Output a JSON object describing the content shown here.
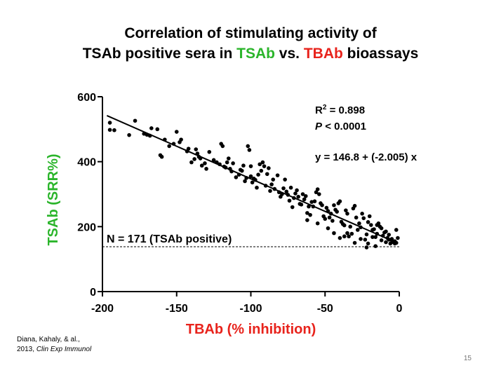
{
  "slide": {
    "title_line1": "Correlation of stimulating activity of",
    "title_line2_pre": "TSAb positive sera in ",
    "title_line2_tsab": "TSAb",
    "title_line2_mid": " vs. ",
    "title_line2_tbab": "TBAb",
    "title_line2_post": " bioassays",
    "citation_line1": "Diana, Kahaly, & al.,",
    "citation_line2_year": "2013, ",
    "citation_line2_journal": "Clin Exp Immunol",
    "page_number": "15"
  },
  "colors": {
    "green": "#2bb52b",
    "red": "#e8231c",
    "axis": "#000000"
  },
  "chart_data": {
    "type": "scatter",
    "title": "",
    "xlabel": "TBAb (% inhibition)",
    "ylabel": "TSAb (SRR%)",
    "xlim": [
      -200,
      0
    ],
    "ylim": [
      0,
      600
    ],
    "x_ticks": [
      -200,
      -150,
      -100,
      -50,
      0
    ],
    "y_ticks": [
      0,
      200,
      400,
      600
    ],
    "grid": false,
    "regression": {
      "intercept": 146.8,
      "slope": -2.005,
      "label": "y = 146.8 + (-2.005) x"
    },
    "r_squared_label": "= 0.898",
    "p_label": "< 0.0001",
    "threshold": {
      "y": 138,
      "label": "N = 171 (TSAb positive)"
    },
    "points": [
      [
        -195,
        520
      ],
      [
        -195,
        498
      ],
      [
        -192,
        497
      ],
      [
        -182,
        482
      ],
      [
        -178,
        526
      ],
      [
        -172,
        486
      ],
      [
        -170,
        483
      ],
      [
        -168,
        480
      ],
      [
        -167,
        503
      ],
      [
        -163,
        500
      ],
      [
        -161,
        420
      ],
      [
        -160,
        415
      ],
      [
        -158,
        468
      ],
      [
        -155,
        448
      ],
      [
        -152,
        455
      ],
      [
        -150,
        492
      ],
      [
        -148,
        460
      ],
      [
        -147,
        468
      ],
      [
        -143,
        432
      ],
      [
        -142,
        440
      ],
      [
        -140,
        398
      ],
      [
        -138,
        408
      ],
      [
        -137,
        438
      ],
      [
        -136,
        425
      ],
      [
        -135,
        415
      ],
      [
        -134,
        410
      ],
      [
        -133,
        388
      ],
      [
        -131,
        395
      ],
      [
        -130,
        378
      ],
      [
        -128,
        430
      ],
      [
        -125,
        405
      ],
      [
        -123,
        398
      ],
      [
        -121,
        392
      ],
      [
        -120,
        455
      ],
      [
        -119,
        448
      ],
      [
        -118,
        385
      ],
      [
        -117,
        382
      ],
      [
        -116,
        398
      ],
      [
        -115,
        410
      ],
      [
        -114,
        378
      ],
      [
        -113,
        370
      ],
      [
        -112,
        395
      ],
      [
        -110,
        352
      ],
      [
        -108,
        360
      ],
      [
        -107,
        375
      ],
      [
        -106,
        372
      ],
      [
        -105,
        388
      ],
      [
        -104,
        340
      ],
      [
        -103,
        350
      ],
      [
        -102,
        448
      ],
      [
        -101,
        436
      ],
      [
        -100,
        386
      ],
      [
        -100,
        355
      ],
      [
        -99,
        336
      ],
      [
        -98,
        348
      ],
      [
        -97,
        344
      ],
      [
        -96,
        320
      ],
      [
        -95,
        360
      ],
      [
        -94,
        392
      ],
      [
        -93,
        372
      ],
      [
        -92,
        398
      ],
      [
        -91,
        386
      ],
      [
        -90,
        326
      ],
      [
        -89,
        362
      ],
      [
        -88,
        380
      ],
      [
        -87,
        310
      ],
      [
        -86,
        330
      ],
      [
        -85,
        345
      ],
      [
        -84,
        316
      ],
      [
        -82,
        358
      ],
      [
        -81,
        306
      ],
      [
        -80,
        292
      ],
      [
        -79,
        300
      ],
      [
        -78,
        318
      ],
      [
        -77,
        345
      ],
      [
        -76,
        308
      ],
      [
        -75,
        298
      ],
      [
        -74,
        280
      ],
      [
        -73,
        320
      ],
      [
        -72,
        260
      ],
      [
        -71,
        288
      ],
      [
        -70,
        302
      ],
      [
        -69,
        312
      ],
      [
        -68,
        292
      ],
      [
        -67,
        270
      ],
      [
        -66,
        268
      ],
      [
        -65,
        300
      ],
      [
        -64,
        284
      ],
      [
        -63,
        294
      ],
      [
        -62,
        242
      ],
      [
        -61,
        262
      ],
      [
        -60,
        236
      ],
      [
        -59,
        276
      ],
      [
        -58,
        262
      ],
      [
        -57,
        278
      ],
      [
        -56,
        306
      ],
      [
        -55,
        315
      ],
      [
        -54,
        300
      ],
      [
        -53,
        272
      ],
      [
        -52,
        266
      ],
      [
        -51,
        232
      ],
      [
        -50,
        224
      ],
      [
        -49,
        258
      ],
      [
        -48,
        248
      ],
      [
        -47,
        228
      ],
      [
        -46,
        240
      ],
      [
        -45,
        218
      ],
      [
        -44,
        266
      ],
      [
        -43,
        252
      ],
      [
        -42,
        246
      ],
      [
        -41,
        272
      ],
      [
        -40,
        278
      ],
      [
        -39,
        215
      ],
      [
        -38,
        208
      ],
      [
        -37,
        204
      ],
      [
        -36,
        250
      ],
      [
        -35,
        240
      ],
      [
        -34,
        170
      ],
      [
        -33,
        200
      ],
      [
        -32,
        178
      ],
      [
        -31,
        256
      ],
      [
        -30,
        264
      ],
      [
        -29,
        228
      ],
      [
        -28,
        190
      ],
      [
        -27,
        210
      ],
      [
        -26,
        198
      ],
      [
        -25,
        240
      ],
      [
        -24,
        226
      ],
      [
        -23,
        160
      ],
      [
        -22,
        176
      ],
      [
        -21,
        214
      ],
      [
        -20,
        232
      ],
      [
        -19,
        205
      ],
      [
        -18,
        168
      ],
      [
        -17,
        192
      ],
      [
        -16,
        168
      ],
      [
        -15,
        178
      ],
      [
        -14,
        210
      ],
      [
        -13,
        200
      ],
      [
        -12,
        158
      ],
      [
        -11,
        172
      ],
      [
        -10,
        182
      ],
      [
        -9,
        152
      ],
      [
        -8,
        165
      ],
      [
        -7,
        160
      ],
      [
        -6,
        148
      ],
      [
        -5,
        158
      ],
      [
        -4,
        152
      ],
      [
        -3,
        148
      ],
      [
        -2,
        190
      ],
      [
        -2,
        150
      ],
      [
        -1,
        165
      ],
      [
        -62,
        220
      ],
      [
        -55,
        210
      ],
      [
        -48,
        195
      ],
      [
        -40,
        165
      ],
      [
        -35,
        180
      ],
      [
        -30,
        150
      ],
      [
        -26,
        162
      ],
      [
        -21,
        148
      ],
      [
        -18,
        190
      ],
      [
        -15,
        205
      ],
      [
        -12,
        195
      ],
      [
        -9,
        185
      ],
      [
        -7,
        175
      ],
      [
        -5,
        162
      ],
      [
        -3,
        155
      ],
      [
        -44,
        180
      ],
      [
        -37,
        170
      ],
      [
        -22,
        136
      ],
      [
        -16,
        140
      ]
    ]
  }
}
